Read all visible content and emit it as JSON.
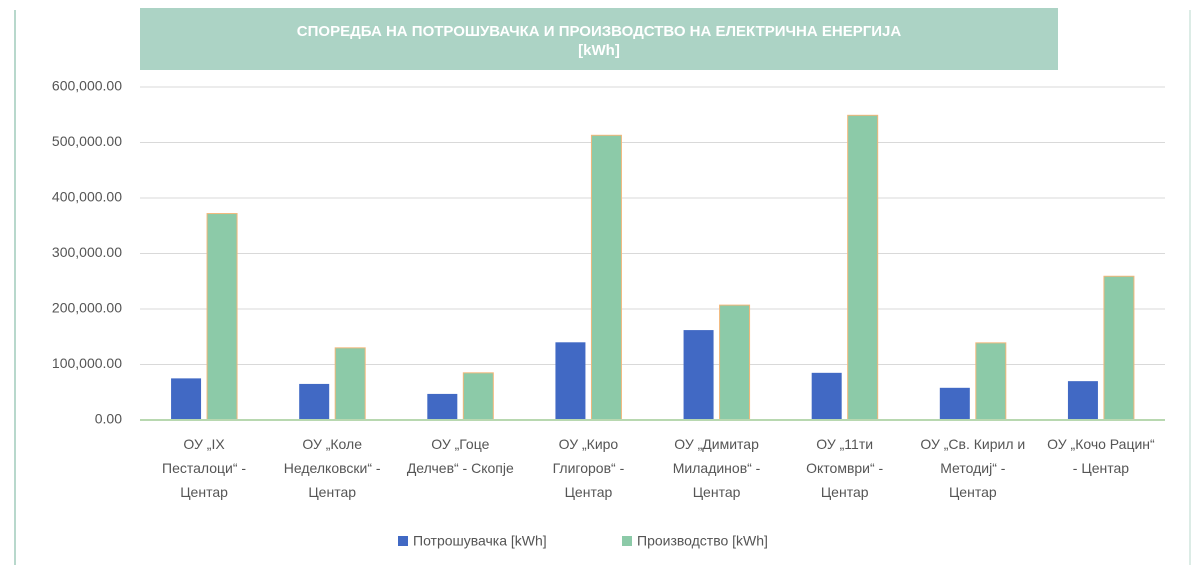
{
  "chart_data": {
    "type": "bar",
    "title": "СПОРЕДБА НА ПОТРОШУВАЧКА И ПРОИЗВОДСТВО НА ЕЛЕКТРИЧНА ЕНЕРГИЈА [kWh]",
    "categories": [
      "ОУ „IX Песталоци“ - Центар",
      "ОУ „Коле Неделковски“ - Центар",
      "ОУ „Гоце Делчев“ - Скопје",
      "ОУ „Киро Глигоров“ - Центар",
      "ОУ „Димитар Миладинов“ - Центар",
      "ОУ „11ти Октомври“ - Центар",
      "ОУ „Св. Кирил и Методиј“ - Центар",
      "ОУ „Кочо Рацин“ - Центар"
    ],
    "series": [
      {
        "name": "Потрошувачка [kWh]",
        "color": "#4169c4",
        "values": [
          75000,
          65000,
          47000,
          140000,
          162000,
          85000,
          58000,
          70000
        ]
      },
      {
        "name": "Производство [kWh]",
        "color": "#8ccaa8",
        "values": [
          372000,
          130000,
          85000,
          513000,
          207000,
          549000,
          139000,
          259000
        ]
      }
    ],
    "ylim": [
      0,
      600000
    ],
    "yticks": [
      {
        "value": 0,
        "label": "0.00"
      },
      {
        "value": 100000,
        "label": "100,000.00"
      },
      {
        "value": 200000,
        "label": "200,000.00"
      },
      {
        "value": 300000,
        "label": "300,000.00"
      },
      {
        "value": 400000,
        "label": "400,000.00"
      },
      {
        "value": 500000,
        "label": "500,000.00"
      },
      {
        "value": 600000,
        "label": "600,000.00"
      }
    ],
    "grid": true,
    "legend": "bottom"
  }
}
